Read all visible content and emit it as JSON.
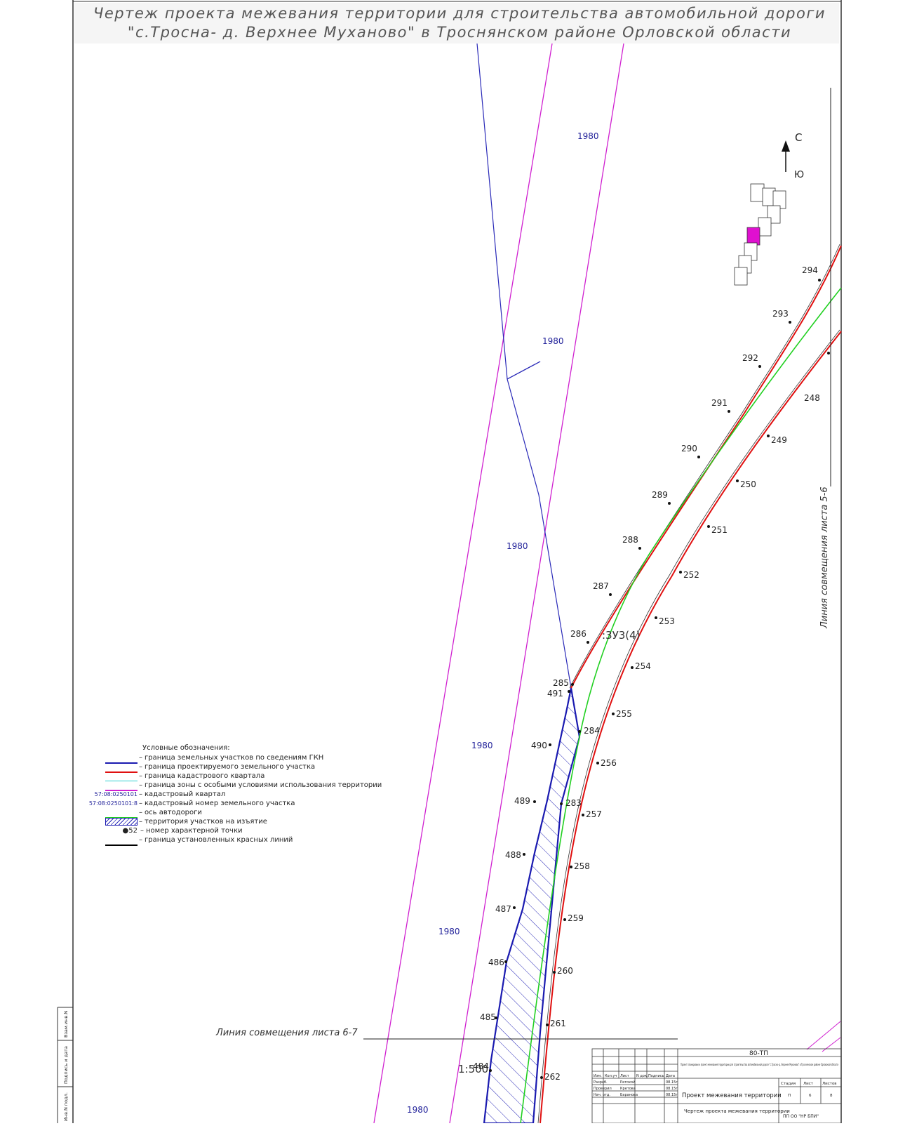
{
  "title": {
    "line1": "Чертеж проекта межевания территории для строительства автомобильной дороги",
    "line2": "\"с.Тросна- д. Верхнее Муханово\" в Троснянском районе Орловской области"
  },
  "north_arrow": {
    "north": "С",
    "south": "Ю"
  },
  "kvartal_labels": [
    "1980",
    "1980",
    "1980",
    "1980",
    "1980",
    "1980"
  ],
  "parcel_label": ":3У3(4)",
  "match_lines": {
    "vertical": "Линия совмещения листа 5-6",
    "horizontal": "Линия совмещения листа 6-7"
  },
  "scale": "1:500",
  "points_upper": [
    "294",
    "293",
    "292",
    "291",
    "290",
    "289",
    "288",
    "287",
    "286",
    "285",
    "284",
    "283"
  ],
  "points_lower": [
    "248",
    "249",
    "250",
    "251",
    "252",
    "253",
    "254",
    "255",
    "256",
    "257",
    "258",
    "259",
    "260",
    "261",
    "262"
  ],
  "points_left": [
    "491",
    "490",
    "489",
    "488",
    "487",
    "486",
    "485",
    "484"
  ],
  "legend": {
    "title": "Условные обозначения:",
    "items": [
      {
        "text": "граница земельных участков по сведениям ГКН",
        "color": "#1a1ab0"
      },
      {
        "text": "граница проектируемого земельного участка",
        "color": "#e01010"
      },
      {
        "text": "граница кадастрового квартала",
        "color": "#30d0d0"
      },
      {
        "text": "граница зоны с особыми условиями использования территории",
        "color": "#d020d0"
      },
      {
        "text": "кадастровый квартал",
        "code": "57:08:0250101"
      },
      {
        "text": "кадастровый номер земельного участка",
        "code": "57:08:0250101:8"
      },
      {
        "text": "ось автодороги",
        "color": "#20d020"
      },
      {
        "text": "территория участков на изъятие"
      },
      {
        "text": "номер характерной точки",
        "code": "52"
      },
      {
        "text": "граница установленных красных линий",
        "color": "#000000"
      }
    ]
  },
  "stamp": {
    "code": "80-ТП",
    "project": "Проект планировки и проект межевания территории для строительства автомобильной дороги \"с.Тросна- д. Верхнее Муханово\" в Троснянском районе Орловской области",
    "headers": [
      "Изм.",
      "Кол.уч",
      "Лист",
      "N док.",
      "Подпись",
      "Дата"
    ],
    "people": [
      {
        "role": "Разраб.",
        "name": "Ратохой",
        "date": "08.15г"
      },
      {
        "role": "Проверил",
        "name": "Кретова",
        "date": "08.15г"
      },
      {
        "role": "Нач. отд.",
        "name": "Баранова",
        "date": "08.15г"
      }
    ],
    "section": "Проект межевания территории",
    "stage_headers": [
      "Стадия",
      "Лист",
      "Листов"
    ],
    "stage_values": [
      "П",
      "6",
      "8"
    ],
    "sheet_name": "Чертеж проекта межевания территории",
    "org": "ПП ОО \"НР БПИ\""
  },
  "side_strip": [
    "Инв.N подл.",
    "Подпись и дата",
    "Взам.инв.N"
  ]
}
